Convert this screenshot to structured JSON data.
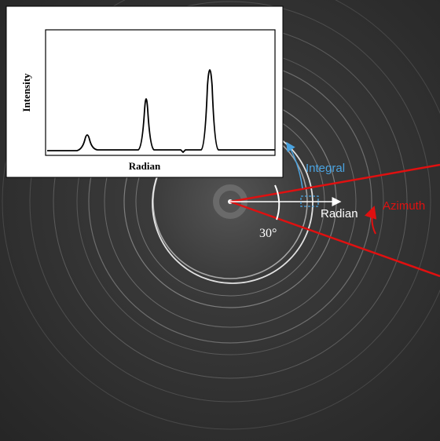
{
  "inset": {
    "x_label": "Radian",
    "y_label": "Intensity"
  },
  "annotations": {
    "integral": "Integral",
    "radian": "Radian",
    "azimuth": "Azimuth",
    "angle": "30°"
  }
}
